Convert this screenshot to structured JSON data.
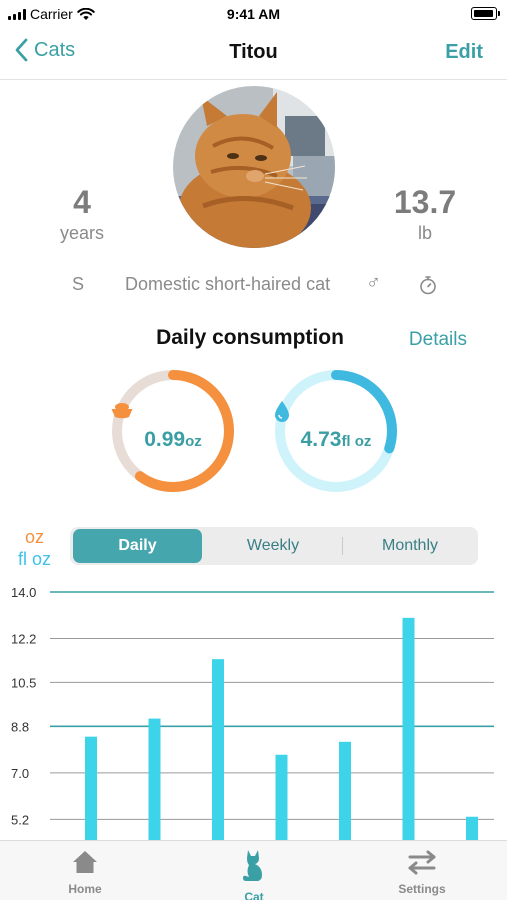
{
  "status_bar": {
    "carrier": "Carrier",
    "time": "9:41 AM"
  },
  "nav": {
    "back_label": "Cats",
    "title": "Titou",
    "edit_label": "Edit"
  },
  "profile": {
    "age_value": "4",
    "age_unit": "years",
    "weight_value": "13.7",
    "weight_unit": "lb",
    "size_code": "S",
    "breed": "Domestic short-haired cat",
    "sex_symbol": "♂"
  },
  "consumption": {
    "title": "Daily consumption",
    "details_label": "Details",
    "food": {
      "value": "0.99",
      "unit": "oz",
      "fraction": 0.6,
      "color": "#f5913e",
      "icon": "food-bowl-icon"
    },
    "water": {
      "value": "4.73",
      "unit": "fl oz",
      "fraction": 0.3,
      "color": "#3fb9e0",
      "icon": "water-drop-icon"
    }
  },
  "units_legend": {
    "food_unit": "oz",
    "water_unit": "fl oz",
    "food_color": "#f5913e",
    "water_color": "#3fc3e8"
  },
  "segmented": {
    "options": [
      "Daily",
      "Weekly",
      "Monthly"
    ],
    "selected": "Daily"
  },
  "chart_data": {
    "type": "bar",
    "y_ticks": [
      "14.0",
      "12.2",
      "10.5",
      "8.8",
      "7.0",
      "5.2"
    ],
    "ylim": [
      4.4,
      14.0
    ],
    "values": [
      8.4,
      9.1,
      11.4,
      7.7,
      8.2,
      13.0,
      5.3
    ],
    "reference_lines": [
      14.0,
      8.8
    ],
    "bar_color": "#3dd3e8",
    "grid": true
  },
  "tab_bar": {
    "items": [
      {
        "label": "Home",
        "icon": "home-icon"
      },
      {
        "label": "Cat",
        "icon": "cat-icon"
      },
      {
        "label": "Settings",
        "icon": "settings-sliders-icon"
      }
    ],
    "active": "Cat"
  }
}
